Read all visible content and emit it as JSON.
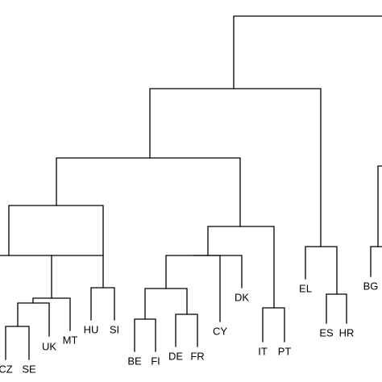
{
  "diagram": {
    "type": "dendrogram",
    "colors": {
      "line": "#000000",
      "background": "#ffffff"
    },
    "leaves": [
      {
        "id": "CZ",
        "label": "CZ"
      },
      {
        "id": "SE",
        "label": "SE"
      },
      {
        "id": "UK",
        "label": "UK"
      },
      {
        "id": "MT",
        "label": "MT"
      },
      {
        "id": "HU",
        "label": "HU"
      },
      {
        "id": "SI",
        "label": "SI"
      },
      {
        "id": "BE",
        "label": "BE"
      },
      {
        "id": "FI",
        "label": "FI"
      },
      {
        "id": "DE",
        "label": "DE"
      },
      {
        "id": "FR",
        "label": "FR"
      },
      {
        "id": "CY",
        "label": "CY"
      },
      {
        "id": "DK",
        "label": "DK"
      },
      {
        "id": "IT",
        "label": "IT"
      },
      {
        "id": "PT",
        "label": "PT"
      },
      {
        "id": "EL",
        "label": "EL"
      },
      {
        "id": "ES",
        "label": "ES"
      },
      {
        "id": "HR",
        "label": "HR"
      },
      {
        "id": "BG",
        "label": "BG"
      }
    ]
  }
}
